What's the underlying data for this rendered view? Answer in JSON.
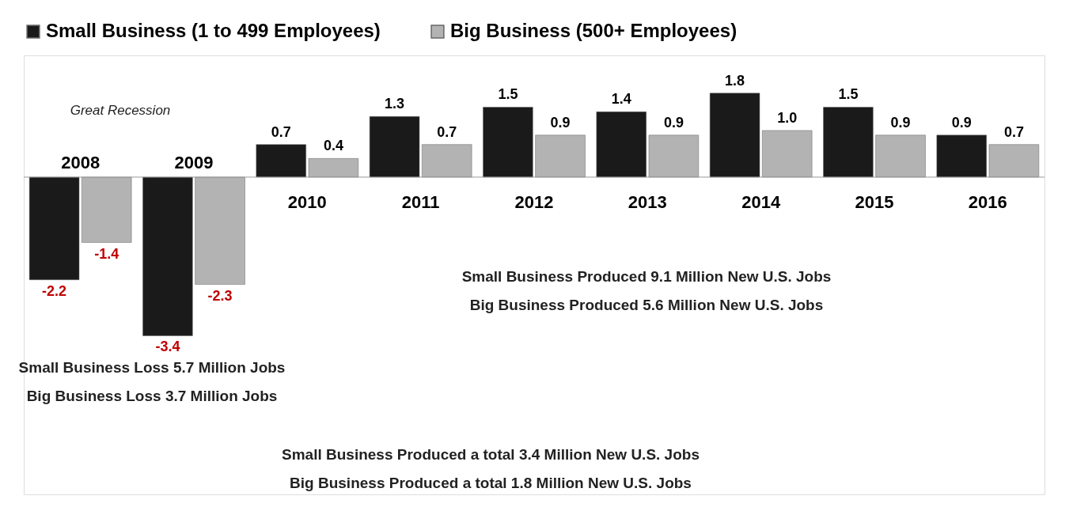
{
  "chart_data": {
    "type": "bar",
    "categories": [
      "2008",
      "2009",
      "2010",
      "2011",
      "2012",
      "2013",
      "2014",
      "2015",
      "2016"
    ],
    "series": [
      {
        "name": "Small Business (1 to 499 Employees)",
        "color": "#1a1a1a",
        "values": [
          -2.2,
          -3.4,
          0.7,
          1.3,
          1.5,
          1.4,
          1.8,
          1.5,
          0.9
        ],
        "value_labels": [
          "-2.2",
          "-3.4",
          "0.7",
          "1.3",
          "1.5",
          "1.4",
          "1.8",
          "1.5",
          "0.9"
        ]
      },
      {
        "name": "Big Business (500+ Employees)",
        "color": "#b3b3b3",
        "values": [
          -1.4,
          -2.3,
          0.4,
          0.7,
          0.9,
          0.9,
          1.0,
          0.9,
          0.7
        ],
        "value_labels": [
          "-1.4",
          "-2.3",
          "0.4",
          "0.7",
          "0.9",
          "0.9",
          "1.0",
          "0.9",
          "0.7"
        ]
      }
    ],
    "grid": false,
    "legend": "top",
    "annotations": [
      "Great Recession",
      "Small Business Produced 9.1 Million New U.S. Jobs",
      "Big Business Produced 5.6 Million New U.S. Jobs",
      "Small Business Loss 5.7 Million Jobs",
      "Big Business Loss 3.7 Million Jobs",
      "Small Business Produced a total 3.4 Million New U.S. Jobs",
      "Big Business Produced a total 1.8 Million New U.S. Jobs"
    ]
  }
}
